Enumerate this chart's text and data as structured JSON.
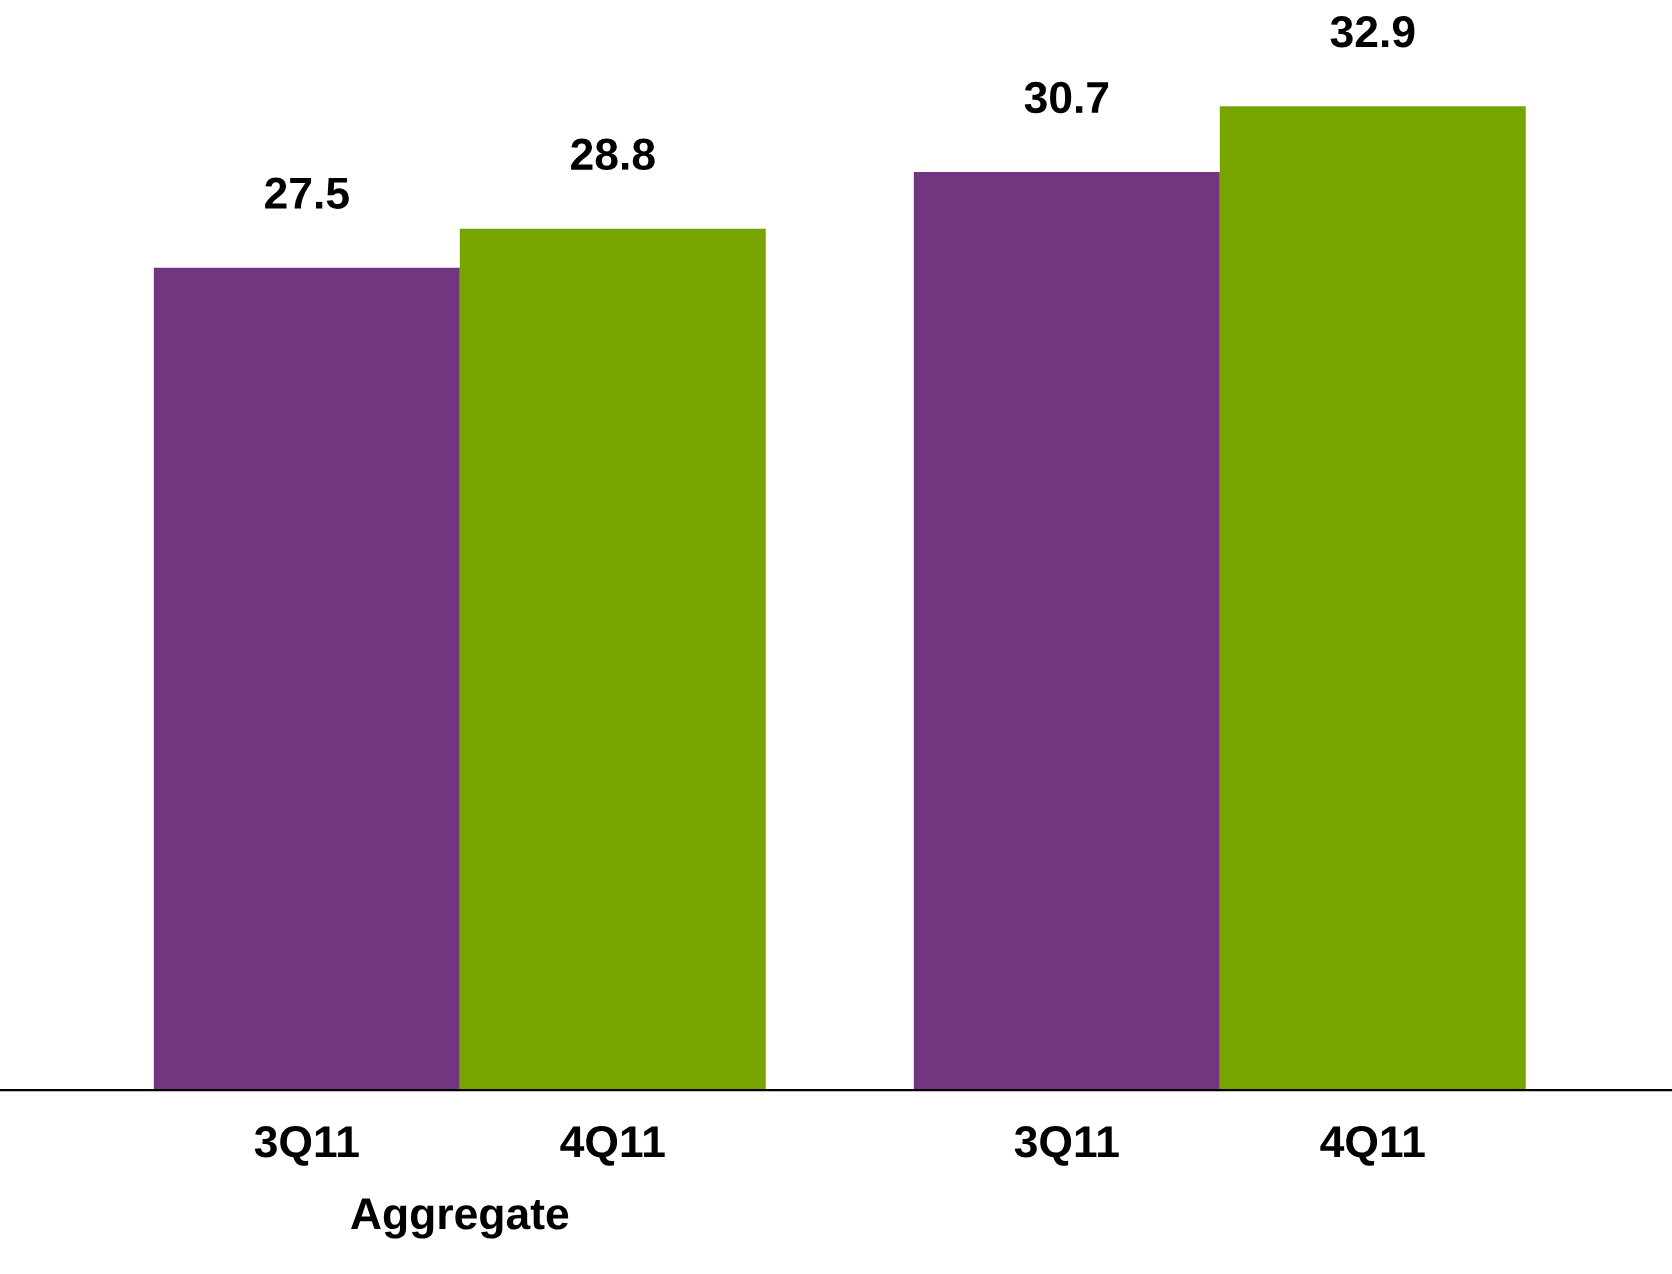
{
  "chart_data": {
    "type": "bar",
    "categories": [
      "Aggregate",
      null
    ],
    "series": [
      {
        "name": "3Q11",
        "color": "#72357f",
        "values": [
          27.5,
          30.7
        ]
      },
      {
        "name": "4Q11",
        "color": "#76a500",
        "values": [
          28.8,
          32.9
        ]
      }
    ],
    "data_labels": true
  }
}
